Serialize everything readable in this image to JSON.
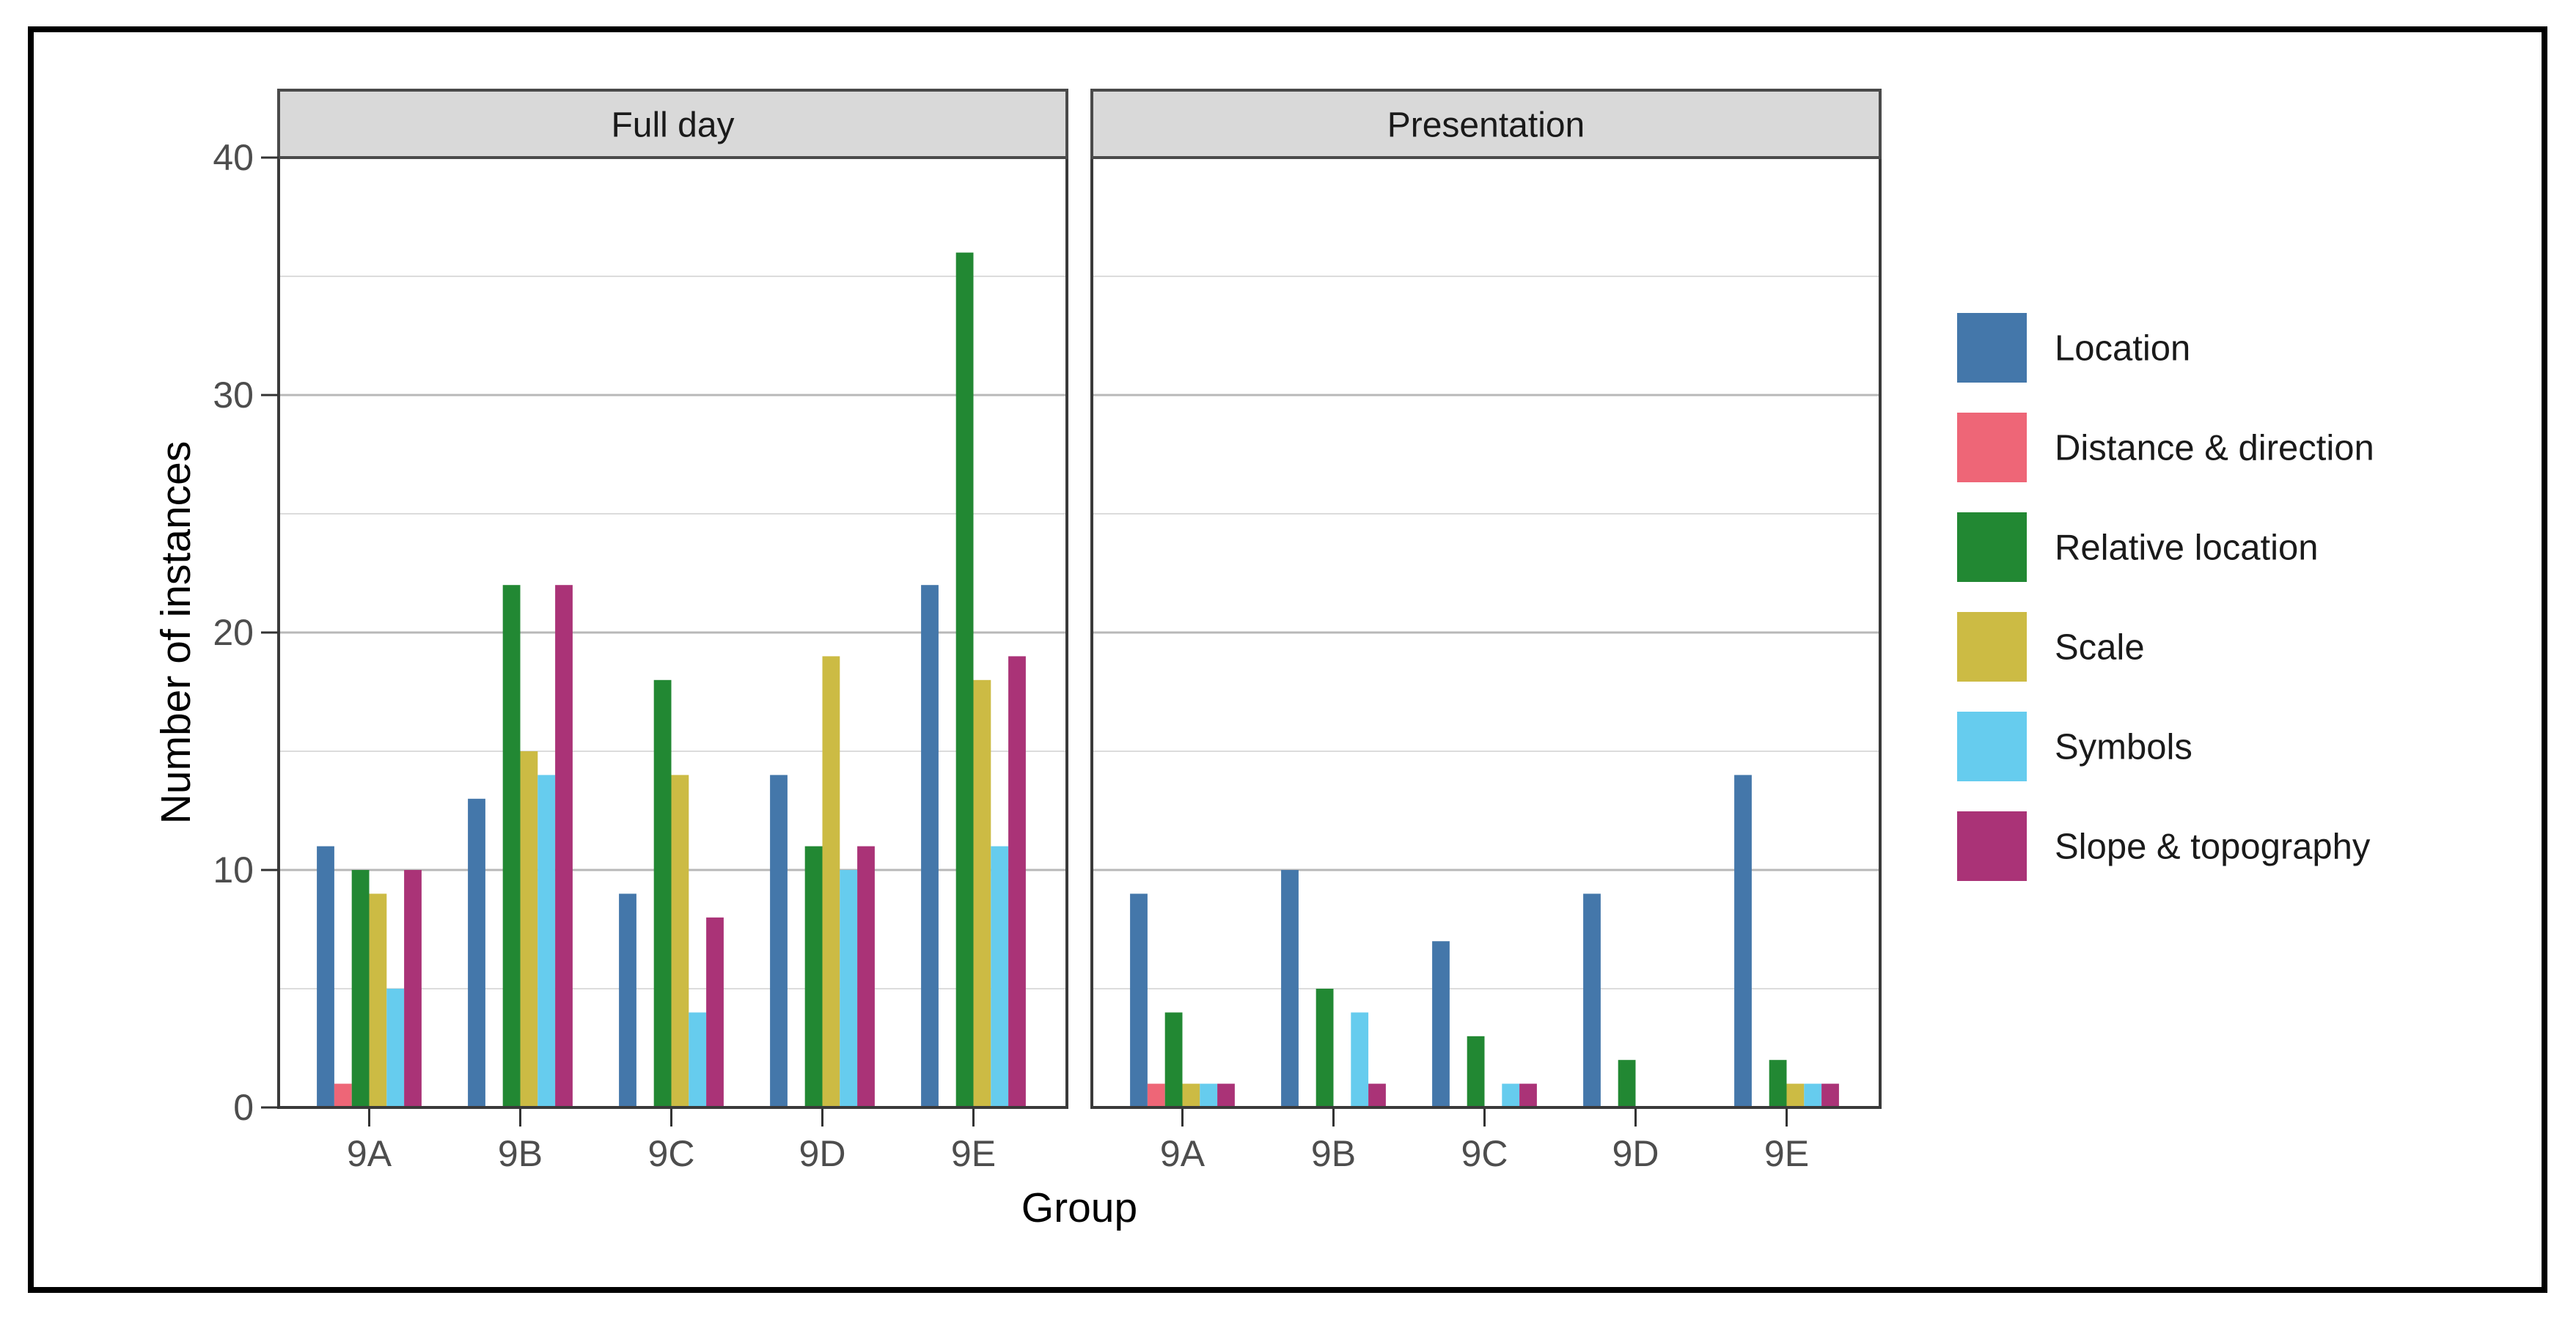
{
  "chart_data": {
    "type": "bar",
    "title": "",
    "facets": [
      "Full day",
      "Presentation"
    ],
    "categories": [
      "9A",
      "9B",
      "9C",
      "9D",
      "9E"
    ],
    "series": [
      {
        "name": "Location",
        "color": "#4477AA",
        "values": [
          [
            11,
            13,
            9,
            14,
            22
          ],
          [
            9,
            10,
            7,
            9,
            14
          ]
        ]
      },
      {
        "name": "Distance & direction",
        "color": "#EE6677",
        "values": [
          [
            1,
            0,
            0,
            0,
            0
          ],
          [
            1,
            0,
            0,
            0,
            0
          ]
        ]
      },
      {
        "name": "Relative location",
        "color": "#228833",
        "values": [
          [
            10,
            22,
            18,
            11,
            36
          ],
          [
            4,
            5,
            3,
            2,
            2
          ]
        ]
      },
      {
        "name": "Scale",
        "color": "#CCBB44",
        "values": [
          [
            9,
            15,
            14,
            19,
            18
          ],
          [
            1,
            0,
            0,
            0,
            1
          ]
        ]
      },
      {
        "name": "Symbols",
        "color": "#66CCEE",
        "values": [
          [
            5,
            14,
            4,
            10,
            11
          ],
          [
            1,
            4,
            1,
            0,
            1
          ]
        ]
      },
      {
        "name": "Slope & topography",
        "color": "#AA3377",
        "values": [
          [
            10,
            22,
            8,
            11,
            19
          ],
          [
            1,
            1,
            1,
            0,
            1
          ]
        ]
      }
    ],
    "xlabel": "Group",
    "ylabel": "Number of instances",
    "ylim": [
      0,
      40
    ],
    "yticks": [
      0,
      10,
      20,
      30,
      40
    ],
    "minor_gridlines": [
      5,
      15,
      25,
      35
    ],
    "grid": true,
    "legend_position": "right"
  },
  "colors": {
    "background": "#FFFFFF",
    "outer_border": "#000000",
    "panel_fill": "#FFFFFF",
    "panel_border": "#3A3A3A",
    "strip_fill": "#D9D9D9",
    "strip_border": "#4A4A4A",
    "strip_text": "#1A1A1A",
    "grid_major": "#B8B8B8",
    "grid_minor": "#DCDCDC",
    "tick_mark": "#333333",
    "tick_label": "#4D4D4D",
    "axis_title": "#000000",
    "legend_text": "#1A1A1A"
  }
}
